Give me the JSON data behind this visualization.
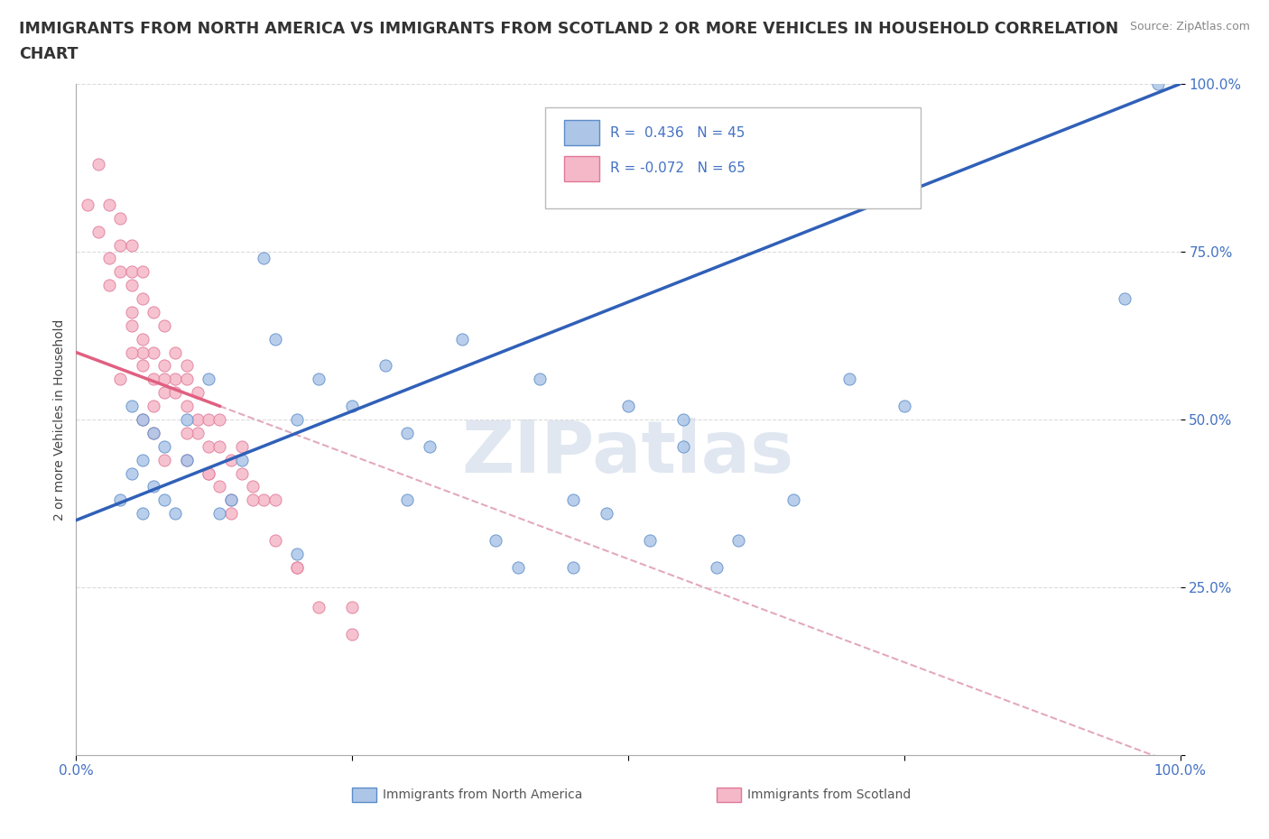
{
  "title_line1": "IMMIGRANTS FROM NORTH AMERICA VS IMMIGRANTS FROM SCOTLAND 2 OR MORE VEHICLES IN HOUSEHOLD CORRELATION",
  "title_line2": "CHART",
  "source": "Source: ZipAtlas.com",
  "ylabel": "2 or more Vehicles in Household",
  "legend_labels": [
    "Immigrants from North America",
    "Immigrants from Scotland"
  ],
  "legend_r": [
    "R =  0.436",
    "R = -0.072"
  ],
  "legend_n": [
    "N = 45",
    "N = 65"
  ],
  "blue_color": "#adc6e8",
  "blue_edge": "#5b8cc8",
  "pink_color": "#f5b8c8",
  "pink_edge": "#e07898",
  "trendline_blue": "#3060b8",
  "trendline_pink": "#e06080",
  "trendline_dashed_color": "#e0a0b8",
  "watermark": "ZIPatlas",
  "watermark_color": "#ccd8e8",
  "axis_color": "#4472c4",
  "xlim": [
    0,
    1
  ],
  "ylim": [
    0,
    1
  ],
  "xticklabels": [
    "0.0%",
    "",
    "",
    "",
    "100.0%"
  ],
  "yticklabels": [
    "",
    "25.0%",
    "50.0%",
    "75.0%",
    "100.0%"
  ],
  "blue_trend_y_start": 0.35,
  "blue_trend_y_end": 1.0,
  "pink_trend_x_start": 0.0,
  "pink_trend_x_end": 0.13,
  "pink_trend_y_start": 0.6,
  "pink_trend_y_end": 0.52,
  "dashed_trend_y_start": 0.62,
  "dashed_trend_y_end": 0.1,
  "blue_scatter_x": [
    0.04,
    0.05,
    0.06,
    0.07,
    0.08,
    0.06,
    0.08,
    0.1,
    0.07,
    0.09,
    0.05,
    0.06,
    0.1,
    0.12,
    0.14,
    0.15,
    0.18,
    0.2,
    0.22,
    0.25,
    0.28,
    0.3,
    0.32,
    0.35,
    0.38,
    0.4,
    0.42,
    0.45,
    0.48,
    0.5,
    0.52,
    0.55,
    0.58,
    0.6,
    0.65,
    0.7,
    0.75,
    0.55,
    0.45,
    0.3,
    0.2,
    0.17,
    0.13,
    0.95,
    0.98
  ],
  "blue_scatter_y": [
    0.38,
    0.42,
    0.36,
    0.4,
    0.38,
    0.5,
    0.46,
    0.44,
    0.48,
    0.36,
    0.52,
    0.44,
    0.5,
    0.56,
    0.38,
    0.44,
    0.62,
    0.5,
    0.56,
    0.52,
    0.58,
    0.48,
    0.46,
    0.62,
    0.32,
    0.28,
    0.56,
    0.38,
    0.36,
    0.52,
    0.32,
    0.46,
    0.28,
    0.32,
    0.38,
    0.56,
    0.52,
    0.5,
    0.28,
    0.38,
    0.3,
    0.74,
    0.36,
    0.68,
    1.0
  ],
  "pink_scatter_x": [
    0.01,
    0.02,
    0.02,
    0.03,
    0.03,
    0.03,
    0.04,
    0.04,
    0.04,
    0.05,
    0.05,
    0.05,
    0.05,
    0.06,
    0.06,
    0.06,
    0.06,
    0.07,
    0.07,
    0.07,
    0.08,
    0.08,
    0.08,
    0.09,
    0.09,
    0.1,
    0.1,
    0.1,
    0.11,
    0.11,
    0.12,
    0.12,
    0.13,
    0.13,
    0.14,
    0.15,
    0.15,
    0.16,
    0.17,
    0.18,
    0.2,
    0.22,
    0.25,
    0.13,
    0.16,
    0.09,
    0.07,
    0.08,
    0.06,
    0.05,
    0.1,
    0.11,
    0.12,
    0.14,
    0.04,
    0.05,
    0.06,
    0.08,
    0.2,
    0.25,
    0.14,
    0.18,
    0.1,
    0.12,
    0.07
  ],
  "pink_scatter_y": [
    0.82,
    0.88,
    0.78,
    0.82,
    0.74,
    0.7,
    0.76,
    0.8,
    0.72,
    0.76,
    0.7,
    0.66,
    0.72,
    0.72,
    0.68,
    0.62,
    0.58,
    0.66,
    0.6,
    0.56,
    0.64,
    0.58,
    0.54,
    0.6,
    0.56,
    0.58,
    0.52,
    0.56,
    0.5,
    0.54,
    0.5,
    0.46,
    0.5,
    0.46,
    0.44,
    0.42,
    0.46,
    0.4,
    0.38,
    0.38,
    0.28,
    0.22,
    0.18,
    0.4,
    0.38,
    0.54,
    0.48,
    0.56,
    0.6,
    0.64,
    0.44,
    0.48,
    0.42,
    0.38,
    0.56,
    0.6,
    0.5,
    0.44,
    0.28,
    0.22,
    0.36,
    0.32,
    0.48,
    0.42,
    0.52
  ]
}
